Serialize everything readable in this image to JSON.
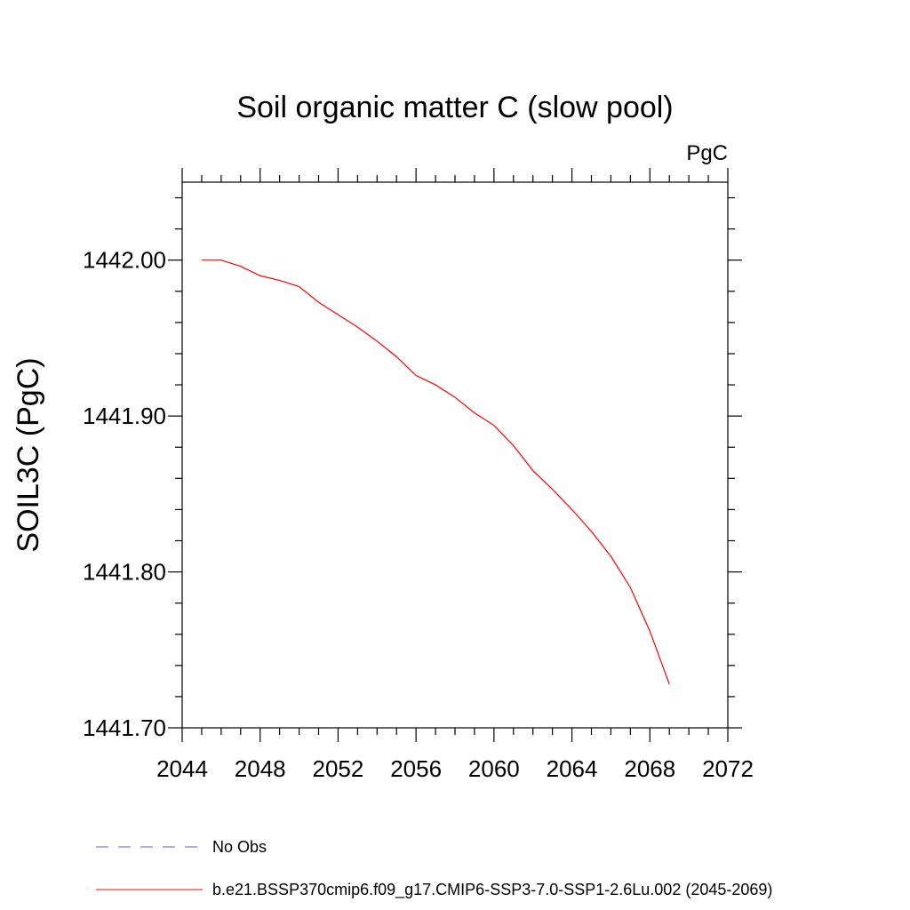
{
  "chart_data": {
    "type": "line",
    "title": "Soil organic matter C (slow pool)",
    "units_label": "PgC",
    "xlabel": "",
    "ylabel": "SOIL3C  (PgC)",
    "xlim": [
      2044,
      2072
    ],
    "ylim": [
      1441.7,
      1442.05
    ],
    "x_ticks": [
      2044,
      2048,
      2052,
      2056,
      2060,
      2064,
      2068,
      2072
    ],
    "x_tick_labels": [
      "2044",
      "2048",
      "2052",
      "2056",
      "2060",
      "2064",
      "2068",
      "2072"
    ],
    "y_ticks": [
      1441.7,
      1441.8,
      1441.9,
      1442.0
    ],
    "y_tick_labels": [
      "1441.70",
      "1441.80",
      "1441.90",
      "1442.00"
    ],
    "x_minor_step": 1,
    "y_minor_step": 0.02,
    "grid": false,
    "series": [
      {
        "name": "b.e21.BSSP370cmip6.f09_g17.CMIP6-SSP3-7.0-SSP1-2.6Lu.002 (2045-2069)",
        "color": "#ff0000",
        "style": "solid",
        "x": [
          2045,
          2046,
          2047,
          2048,
          2049,
          2050,
          2051,
          2052,
          2053,
          2054,
          2055,
          2056,
          2057,
          2058,
          2059,
          2060,
          2061,
          2062,
          2063,
          2064,
          2065,
          2066,
          2067,
          2068,
          2069
        ],
        "values": [
          1442.0,
          1442.0,
          1441.996,
          1441.99,
          1441.987,
          1441.983,
          1441.973,
          1441.965,
          1441.957,
          1441.948,
          1441.938,
          1441.926,
          1441.92,
          1441.912,
          1441.902,
          1441.894,
          1441.881,
          1441.865,
          1441.853,
          1441.84,
          1441.826,
          1441.81,
          1441.79,
          1441.762,
          1441.728
        ]
      }
    ],
    "legend": [
      {
        "label": "No Obs",
        "color": "#6a5acd",
        "style": "dashed"
      },
      {
        "label": "b.e21.BSSP370cmip6.f09_g17.CMIP6-SSP3-7.0-SSP1-2.6Lu.002 (2045-2069)",
        "color": "#ff0000",
        "style": "solid"
      }
    ],
    "legend_position": "bottom-left"
  }
}
